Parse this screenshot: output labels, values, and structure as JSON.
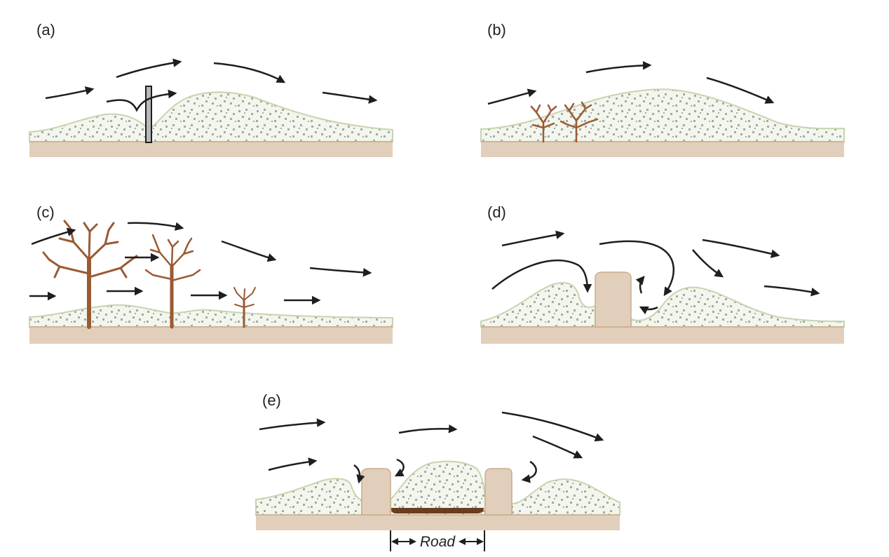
{
  "panels": [
    {
      "id": "a",
      "label": "(a)"
    },
    {
      "id": "b",
      "label": "(b)"
    },
    {
      "id": "c",
      "label": "(c)"
    },
    {
      "id": "d",
      "label": "(d)"
    },
    {
      "id": "e",
      "label": "(e)"
    }
  ],
  "road_label": "Road",
  "colors": {
    "ground": "#e2cfbb",
    "ground_edge": "#c9ab8c",
    "sand_fill": "#f2f6ec",
    "sand_edge": "#c7d4b0",
    "sand_speckle": "#a8a8a8",
    "arrow": "#1e1e1e",
    "vegetation": "#9a5a34",
    "fence_post": "#b9b9b9",
    "road_surface": "#6b3d1e"
  }
}
